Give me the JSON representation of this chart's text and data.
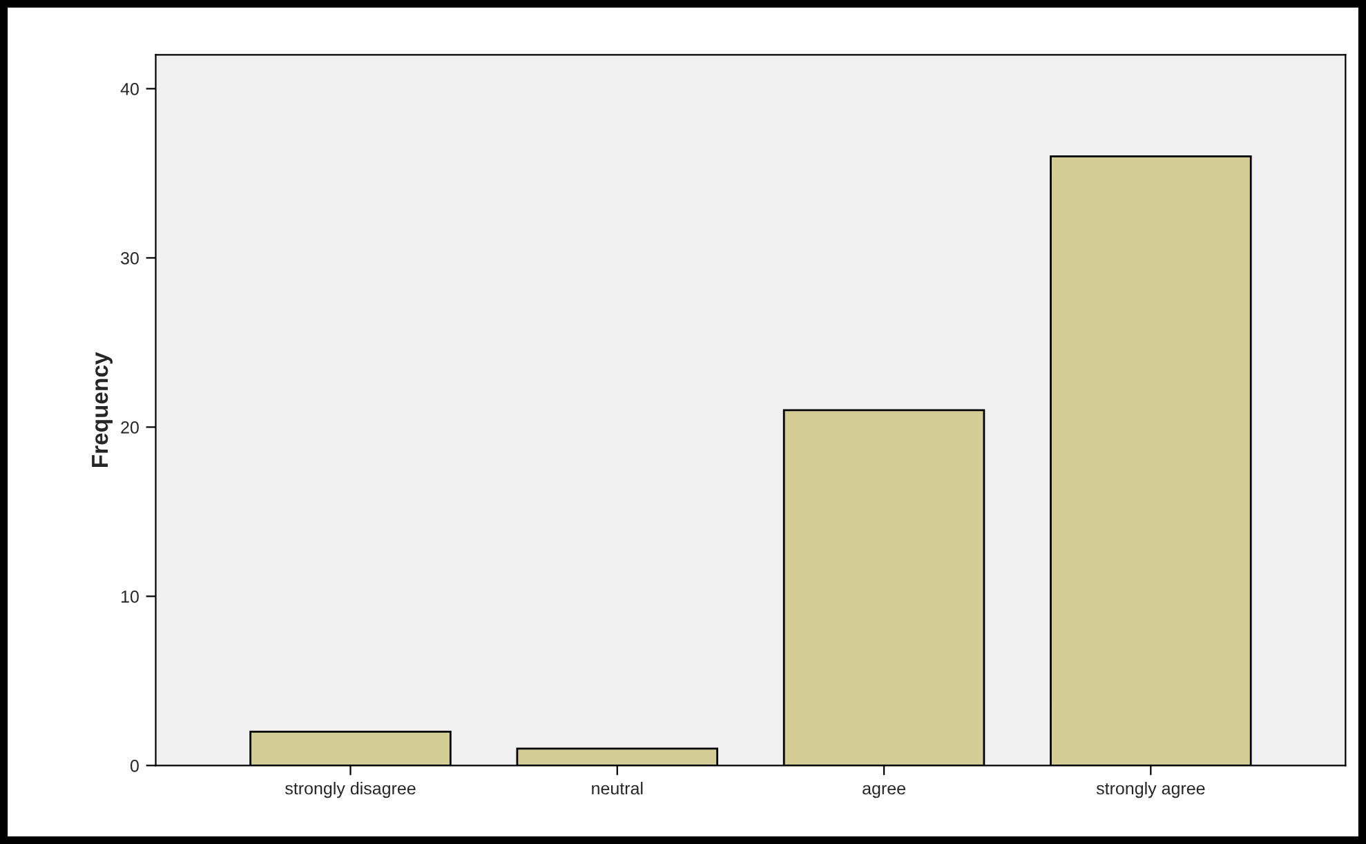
{
  "chart_data": {
    "type": "bar",
    "ylabel": "Frequency",
    "categories": [
      "strongly disagree",
      "neutral",
      "agree",
      "strongly agree"
    ],
    "values": [
      2,
      1,
      21,
      36
    ],
    "color": "#d3cd95",
    "ylim": [
      0,
      42
    ],
    "yticks": [
      0,
      10,
      20,
      30,
      40
    ],
    "grid": false,
    "legend": false
  }
}
